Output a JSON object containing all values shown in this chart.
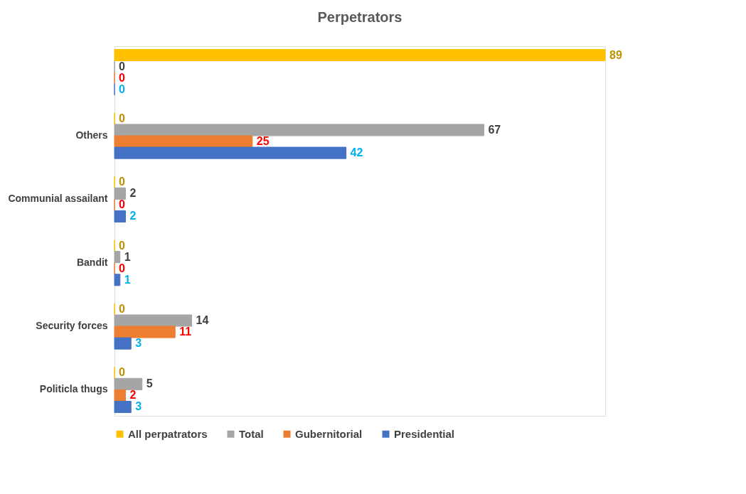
{
  "chart_data": {
    "type": "bar",
    "orientation": "horizontal",
    "title": "Perpetrators",
    "categories": [
      null,
      "Others",
      "Communial assailant",
      "Bandit",
      "Security forces",
      "Politicla thugs"
    ],
    "series": [
      {
        "name": "All perpatrators",
        "color": "#ffc000",
        "values": [
          89,
          0,
          0,
          0,
          0,
          0
        ]
      },
      {
        "name": "Total",
        "color": "#a5a5a5",
        "values": [
          0,
          67,
          2,
          1,
          14,
          5
        ]
      },
      {
        "name": "Gubernitorial",
        "color": "#ed7d31",
        "values": [
          0,
          25,
          0,
          0,
          11,
          2
        ]
      },
      {
        "name": "Presidential",
        "color": "#4472c4",
        "values": [
          0,
          42,
          2,
          1,
          3,
          3
        ]
      }
    ],
    "data_labels": true,
    "tick_labels": "y",
    "grid": false,
    "legend": "bottom"
  }
}
